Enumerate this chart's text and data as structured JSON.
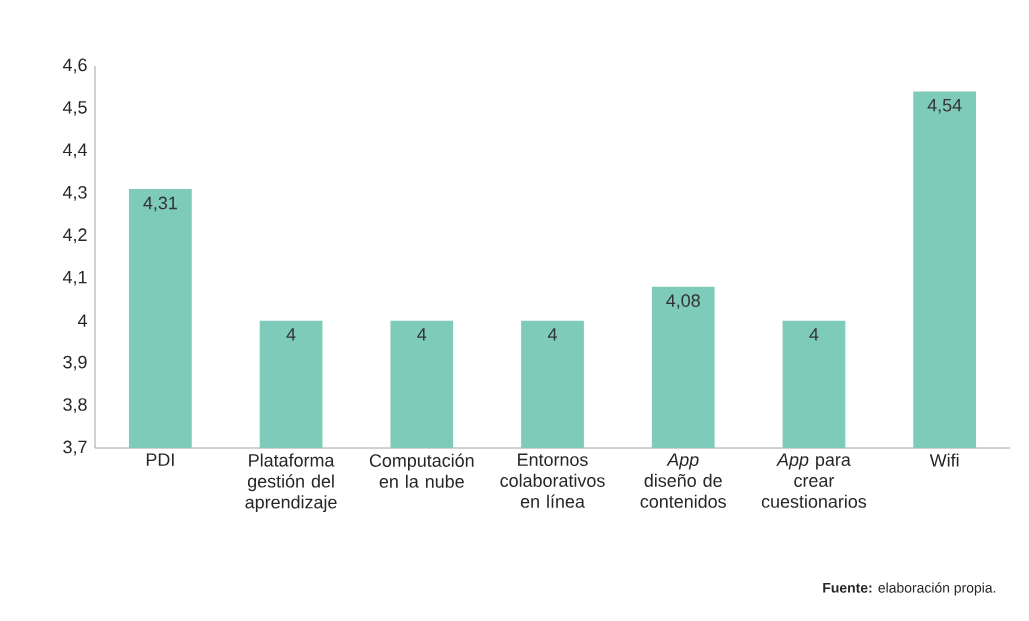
{
  "chart_data": {
    "type": "bar",
    "categories": [
      "PDI",
      "Plataforma gestión del aprendizaje",
      "Computación en la nube",
      "Entornos colaborativos en línea",
      "*App* diseño de contenidos",
      "*App* para crear cuestionarios",
      "Wifi"
    ],
    "values": [
      4.31,
      4,
      4,
      4,
      4.08,
      4,
      4.54
    ],
    "value_labels": [
      "4,31",
      "4",
      "4",
      "4",
      "4,08",
      "4",
      "4,54"
    ],
    "color": "#7dcbb8",
    "ylim": [
      3.7,
      4.6
    ],
    "yticks": [
      {
        "value": 3.7,
        "label": "3,7"
      },
      {
        "value": 3.8,
        "label": "3,8"
      },
      {
        "value": 3.9,
        "label": "3,9"
      },
      4,
      {
        "value": 4.1,
        "label": "4,1"
      },
      {
        "value": 4.2,
        "label": "4,2"
      },
      {
        "value": 4.3,
        "label": "4,3"
      },
      {
        "value": 4.4,
        "label": "4,4"
      },
      {
        "value": 4.5,
        "label": "4,5"
      },
      {
        "value": 4.6,
        "label": "4,6"
      }
    ],
    "grid": false,
    "annotations": [
      "**Fuente:** elaboración propia."
    ]
  }
}
